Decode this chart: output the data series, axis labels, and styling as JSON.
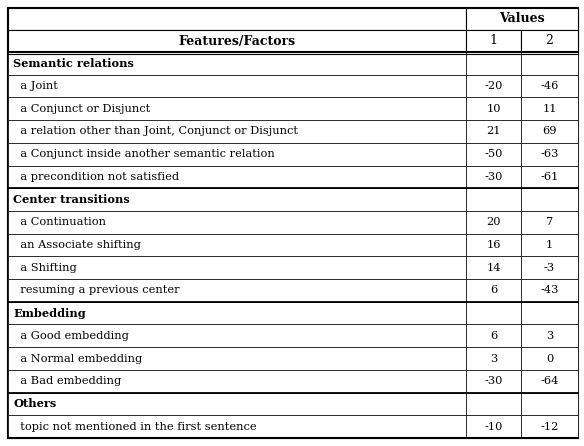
{
  "header_col": "Features/Factors",
  "header_vals": "Values",
  "col1": "1",
  "col2": "2",
  "rows": [
    {
      "label": "Semantic relations",
      "bold": true,
      "v1": "",
      "v2": "",
      "section_start": true
    },
    {
      "label": "  a Joint",
      "bold": false,
      "v1": "-20",
      "v2": "-46",
      "section_start": false
    },
    {
      "label": "  a Conjunct or Disjunct",
      "bold": false,
      "v1": "10",
      "v2": "11",
      "section_start": false
    },
    {
      "label": "  a relation other than Joint, Conjunct or Disjunct",
      "bold": false,
      "v1": "21",
      "v2": "69",
      "section_start": false
    },
    {
      "label": "  a Conjunct inside another semantic relation",
      "bold": false,
      "v1": "-50",
      "v2": "-63",
      "section_start": false
    },
    {
      "label": "  a precondition not satisfied",
      "bold": false,
      "v1": "-30",
      "v2": "-61",
      "section_start": false
    },
    {
      "label": "Center transitions",
      "bold": true,
      "v1": "",
      "v2": "",
      "section_start": true
    },
    {
      "label": "  a Continuation",
      "bold": false,
      "v1": "20",
      "v2": "7",
      "section_start": false
    },
    {
      "label": "  an Associate shifting",
      "bold": false,
      "v1": "16",
      "v2": "1",
      "section_start": false
    },
    {
      "label": "  a Shifting",
      "bold": false,
      "v1": "14",
      "v2": "-3",
      "section_start": false
    },
    {
      "label": "  resuming a previous center",
      "bold": false,
      "v1": "6",
      "v2": "-43",
      "section_start": false
    },
    {
      "label": "Embedding",
      "bold": true,
      "v1": "",
      "v2": "",
      "section_start": true
    },
    {
      "label": "  a Good embedding",
      "bold": false,
      "v1": "6",
      "v2": "3",
      "section_start": false
    },
    {
      "label": "  a Normal embedding",
      "bold": false,
      "v1": "3",
      "v2": "0",
      "section_start": false
    },
    {
      "label": "  a Bad embedding",
      "bold": false,
      "v1": "-30",
      "v2": "-64",
      "section_start": false
    },
    {
      "label": "Others",
      "bold": true,
      "v1": "",
      "v2": "",
      "section_start": true
    },
    {
      "label": "  topic not mentioned in the first sentence",
      "bold": false,
      "v1": "-10",
      "v2": "-12",
      "section_start": false
    }
  ],
  "bg_color": "#ffffff",
  "border_color": "#000000",
  "text_color": "#000000",
  "fig_w": 5.84,
  "fig_h": 4.46,
  "dpi": 100
}
